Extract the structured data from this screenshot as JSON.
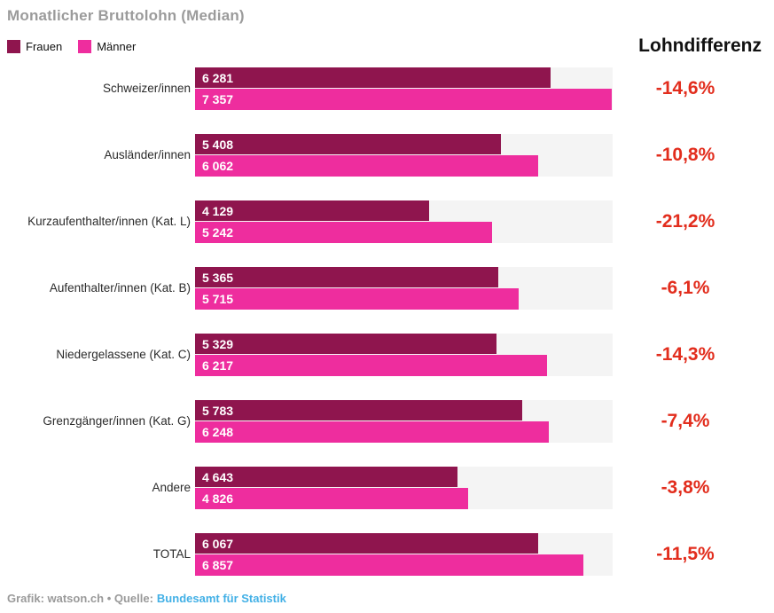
{
  "title": "Monatlicher Bruttolohn (Median)",
  "legend": {
    "frauen": "Frauen",
    "maenner": "Männer"
  },
  "diff_header": "Lohndifferenz",
  "colors": {
    "frauen": "#8f154e",
    "maenner": "#ee2d9e",
    "diff_text": "#e22d1d",
    "track": "#f4f4f4",
    "title_text": "#9b9b9b",
    "link": "#42b0e6"
  },
  "chart_data": {
    "type": "bar",
    "orientation": "horizontal",
    "title": "Monatlicher Bruttolohn (Median)",
    "grid": false,
    "legend_position": "top-left",
    "xmax": 7380,
    "categories": [
      "Schweizer/innen",
      "Ausländer/innen",
      "Kurzaufenthalter/innen (Kat. L)",
      "Aufenthalter/innen (Kat. B)",
      "Niedergelassene (Kat. C)",
      "Grenzgänger/innen (Kat. G)",
      "Andere",
      "TOTAL"
    ],
    "series": [
      {
        "name": "Frauen",
        "values": [
          6281,
          5408,
          4129,
          5365,
          5329,
          5783,
          4643,
          6067
        ],
        "labels": [
          "6 281",
          "5 408",
          "4 129",
          "5 365",
          "5 329",
          "5 783",
          "4 643",
          "6 067"
        ]
      },
      {
        "name": "Männer",
        "values": [
          7357,
          6062,
          5242,
          5715,
          6217,
          6248,
          4826,
          6857
        ],
        "labels": [
          "7 357",
          "6 062",
          "5 242",
          "5 715",
          "6 217",
          "6 248",
          "4 826",
          "6 857"
        ]
      }
    ],
    "differences": [
      "-14,6%",
      "-10,8%",
      "-21,2%",
      "-6,1%",
      "-14,3%",
      "-7,4%",
      "-3,8%",
      "-11,5%"
    ]
  },
  "footer": {
    "credit": "Grafik: watson.ch • Quelle:",
    "source": "Bundesamt für Statistik"
  }
}
